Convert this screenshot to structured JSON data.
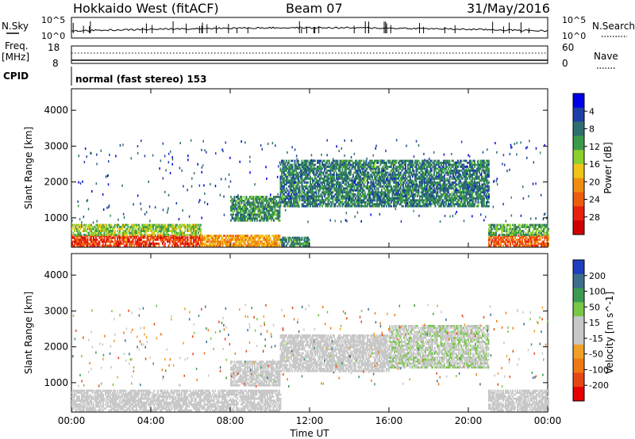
{
  "header": {
    "title": "Hokkaido West (fitACF)",
    "beam": "Beam 07",
    "date": "31/May/2016"
  },
  "top_panels": {
    "nsky_label": "N.Sky",
    "nsearch_label": "N.Search",
    "freq_label": "Freq.",
    "freq_unit": "[MHz]",
    "cpid_label": "CPID",
    "nave_label": "Nave",
    "left_ticks_noise": [
      "10^5",
      "10^0"
    ],
    "right_ticks_noise": [
      "10^5",
      "10^0"
    ],
    "left_ticks_freq": [
      "18",
      "8"
    ],
    "right_ticks_nave": [
      "60",
      "0"
    ],
    "cpid_text": "normal (fast stereo) 153"
  },
  "axes": {
    "ylabel": "Slant Range [km]",
    "xlabel": "Time UT",
    "y_ticks": [
      "1000",
      "2000",
      "3000",
      "4000"
    ],
    "x_ticks": [
      "00:00",
      "04:00",
      "08:00",
      "12:00",
      "16:00",
      "20:00",
      "00:00"
    ]
  },
  "colorbars": {
    "power": {
      "label": "Power [dB]",
      "ticks": [
        "4",
        "8",
        "12",
        "16",
        "20",
        "24",
        "28"
      ],
      "colors": [
        "#0000e6",
        "#1e3fa8",
        "#2e6e6e",
        "#3a9a4a",
        "#8ccf2e",
        "#f0c418",
        "#f08c10",
        "#ee5c10",
        "#e82010",
        "#d00000"
      ]
    },
    "velocity": {
      "label": "Velocity [m s^-1]",
      "ticks": [
        "200",
        "100",
        "50",
        "15",
        "-15",
        "-50",
        "-100",
        "-200"
      ],
      "colors": [
        "#1e3fbe",
        "#3c6e8c",
        "#3c9a50",
        "#78c846",
        "#c8c8c8",
        "#c8c8c8",
        "#f0a028",
        "#f07814",
        "#e64614",
        "#e60000"
      ]
    }
  },
  "chart_data": [
    {
      "type": "heatmap",
      "name": "Power",
      "ylabel": "Slant Range [km]",
      "xlabel": "Time UT",
      "x_range_hours": [
        0,
        24
      ],
      "y_range_km": [
        180,
        4600
      ],
      "color_scale": "Power [dB]",
      "regions": [
        {
          "t0": 0,
          "t1": 6.5,
          "r0": 200,
          "r1": 500,
          "value": 26
        },
        {
          "t0": 0,
          "t1": 6.5,
          "r0": 500,
          "r1": 800,
          "value": 14
        },
        {
          "t0": 6.5,
          "t1": 10.5,
          "r0": 200,
          "r1": 500,
          "value": 20
        },
        {
          "t0": 10.5,
          "t1": 12.0,
          "r0": 200,
          "r1": 450,
          "value": 10
        },
        {
          "t0": 21.0,
          "t1": 24,
          "r0": 200,
          "r1": 500,
          "value": 24
        },
        {
          "t0": 21.0,
          "t1": 24,
          "r0": 500,
          "r1": 800,
          "value": 12
        },
        {
          "t0": 8.0,
          "t1": 10.5,
          "r0": 900,
          "r1": 1600,
          "value": 10
        },
        {
          "t0": 10.5,
          "t1": 21.0,
          "r0": 1300,
          "r1": 2600,
          "value": 9
        }
      ]
    },
    {
      "type": "heatmap",
      "name": "Velocity",
      "ylabel": "Slant Range [km]",
      "xlabel": "Time UT",
      "x_range_hours": [
        0,
        24
      ],
      "y_range_km": [
        180,
        4600
      ],
      "color_scale": "Velocity [m s^-1]",
      "regions": [
        {
          "t0": 0,
          "t1": 10.5,
          "r0": 200,
          "r1": 800,
          "value": 0
        },
        {
          "t0": 8.0,
          "t1": 10.5,
          "r0": 900,
          "r1": 1600,
          "value": 0
        },
        {
          "t0": 10.5,
          "t1": 16.0,
          "r0": 1300,
          "r1": 2300,
          "value": -30
        },
        {
          "t0": 16.0,
          "t1": 21.0,
          "r0": 1400,
          "r1": 2600,
          "value": 40
        },
        {
          "t0": 21.0,
          "t1": 24,
          "r0": 200,
          "r1": 800,
          "value": 0
        }
      ]
    }
  ]
}
